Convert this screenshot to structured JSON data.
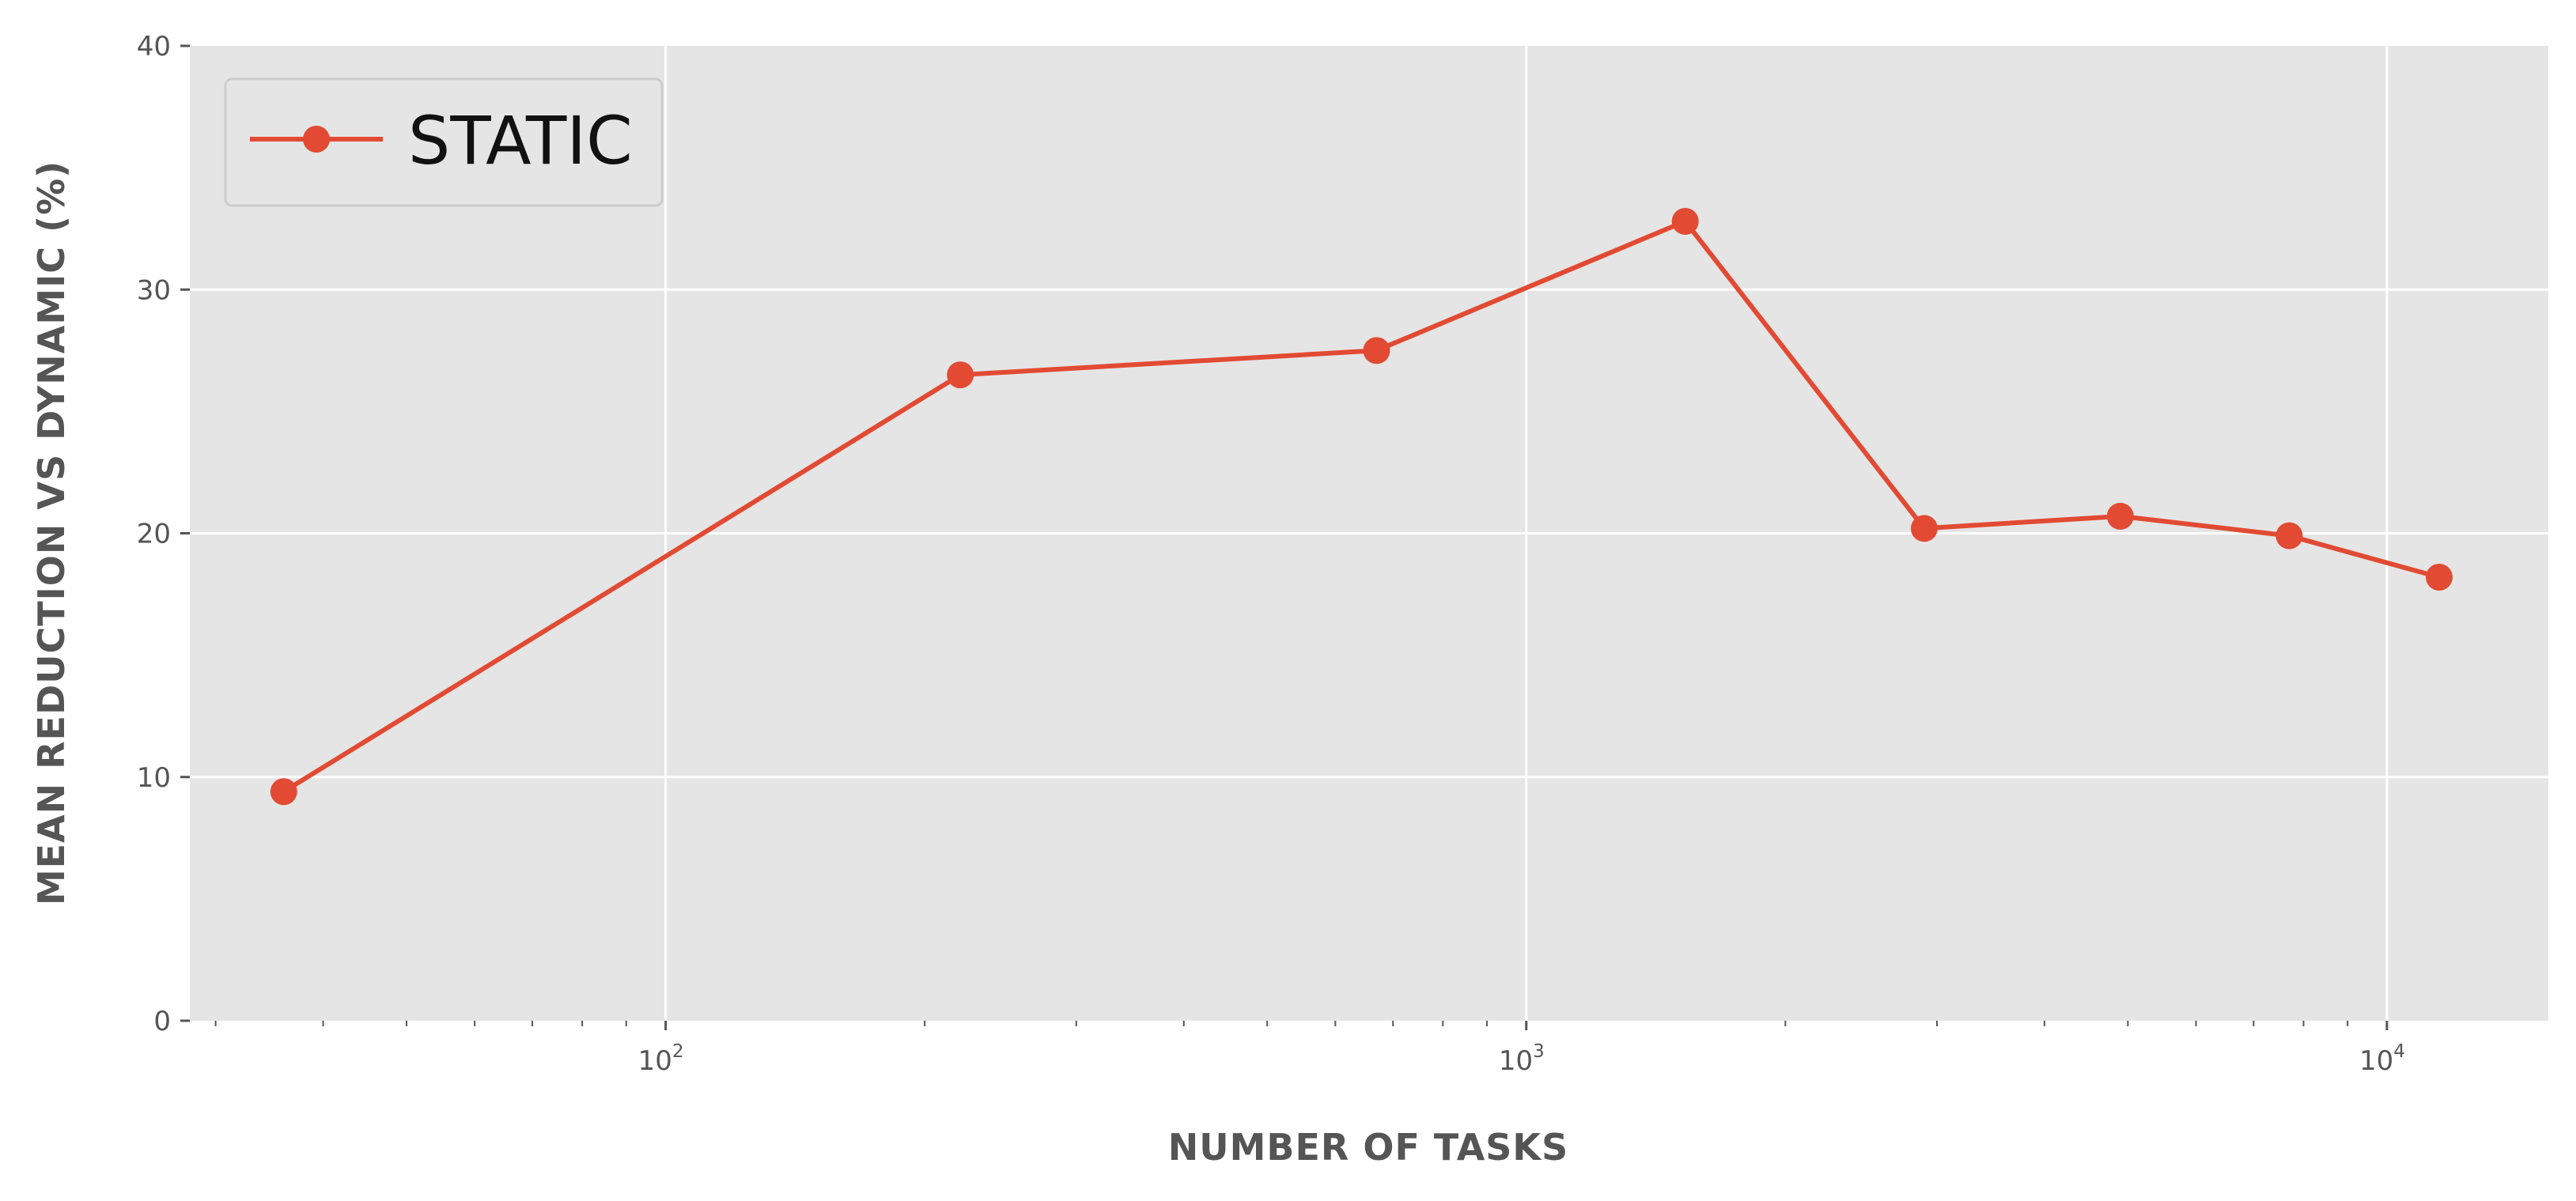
{
  "chart_data": {
    "type": "line",
    "x_scale": "log",
    "x_ticks": [
      {
        "value": 100,
        "base": "10",
        "exponent": "2"
      },
      {
        "value": 1000,
        "base": "10",
        "exponent": "3"
      },
      {
        "value": 10000,
        "base": "10",
        "exponent": "4"
      }
    ],
    "xlim": [
      28,
      15400
    ],
    "ylim": [
      0,
      40
    ],
    "y_ticks": [
      "0",
      "10",
      "20",
      "30",
      "40"
    ],
    "xlabel": "NUMBER OF TASKS",
    "ylabel": "MEAN REDUCTION VS DYNAMIC (%)",
    "grid": true,
    "legend_position": "top-left",
    "series": [
      {
        "name": "STATIC",
        "color": "#E24A33",
        "marker": "circle",
        "points": [
          {
            "x": 36,
            "y": 9.4
          },
          {
            "x": 220,
            "y": 26.5
          },
          {
            "x": 670,
            "y": 27.5
          },
          {
            "x": 1530,
            "y": 32.8
          },
          {
            "x": 2900,
            "y": 20.2
          },
          {
            "x": 4900,
            "y": 20.7
          },
          {
            "x": 7700,
            "y": 19.9
          },
          {
            "x": 11500,
            "y": 18.2
          }
        ]
      }
    ]
  }
}
